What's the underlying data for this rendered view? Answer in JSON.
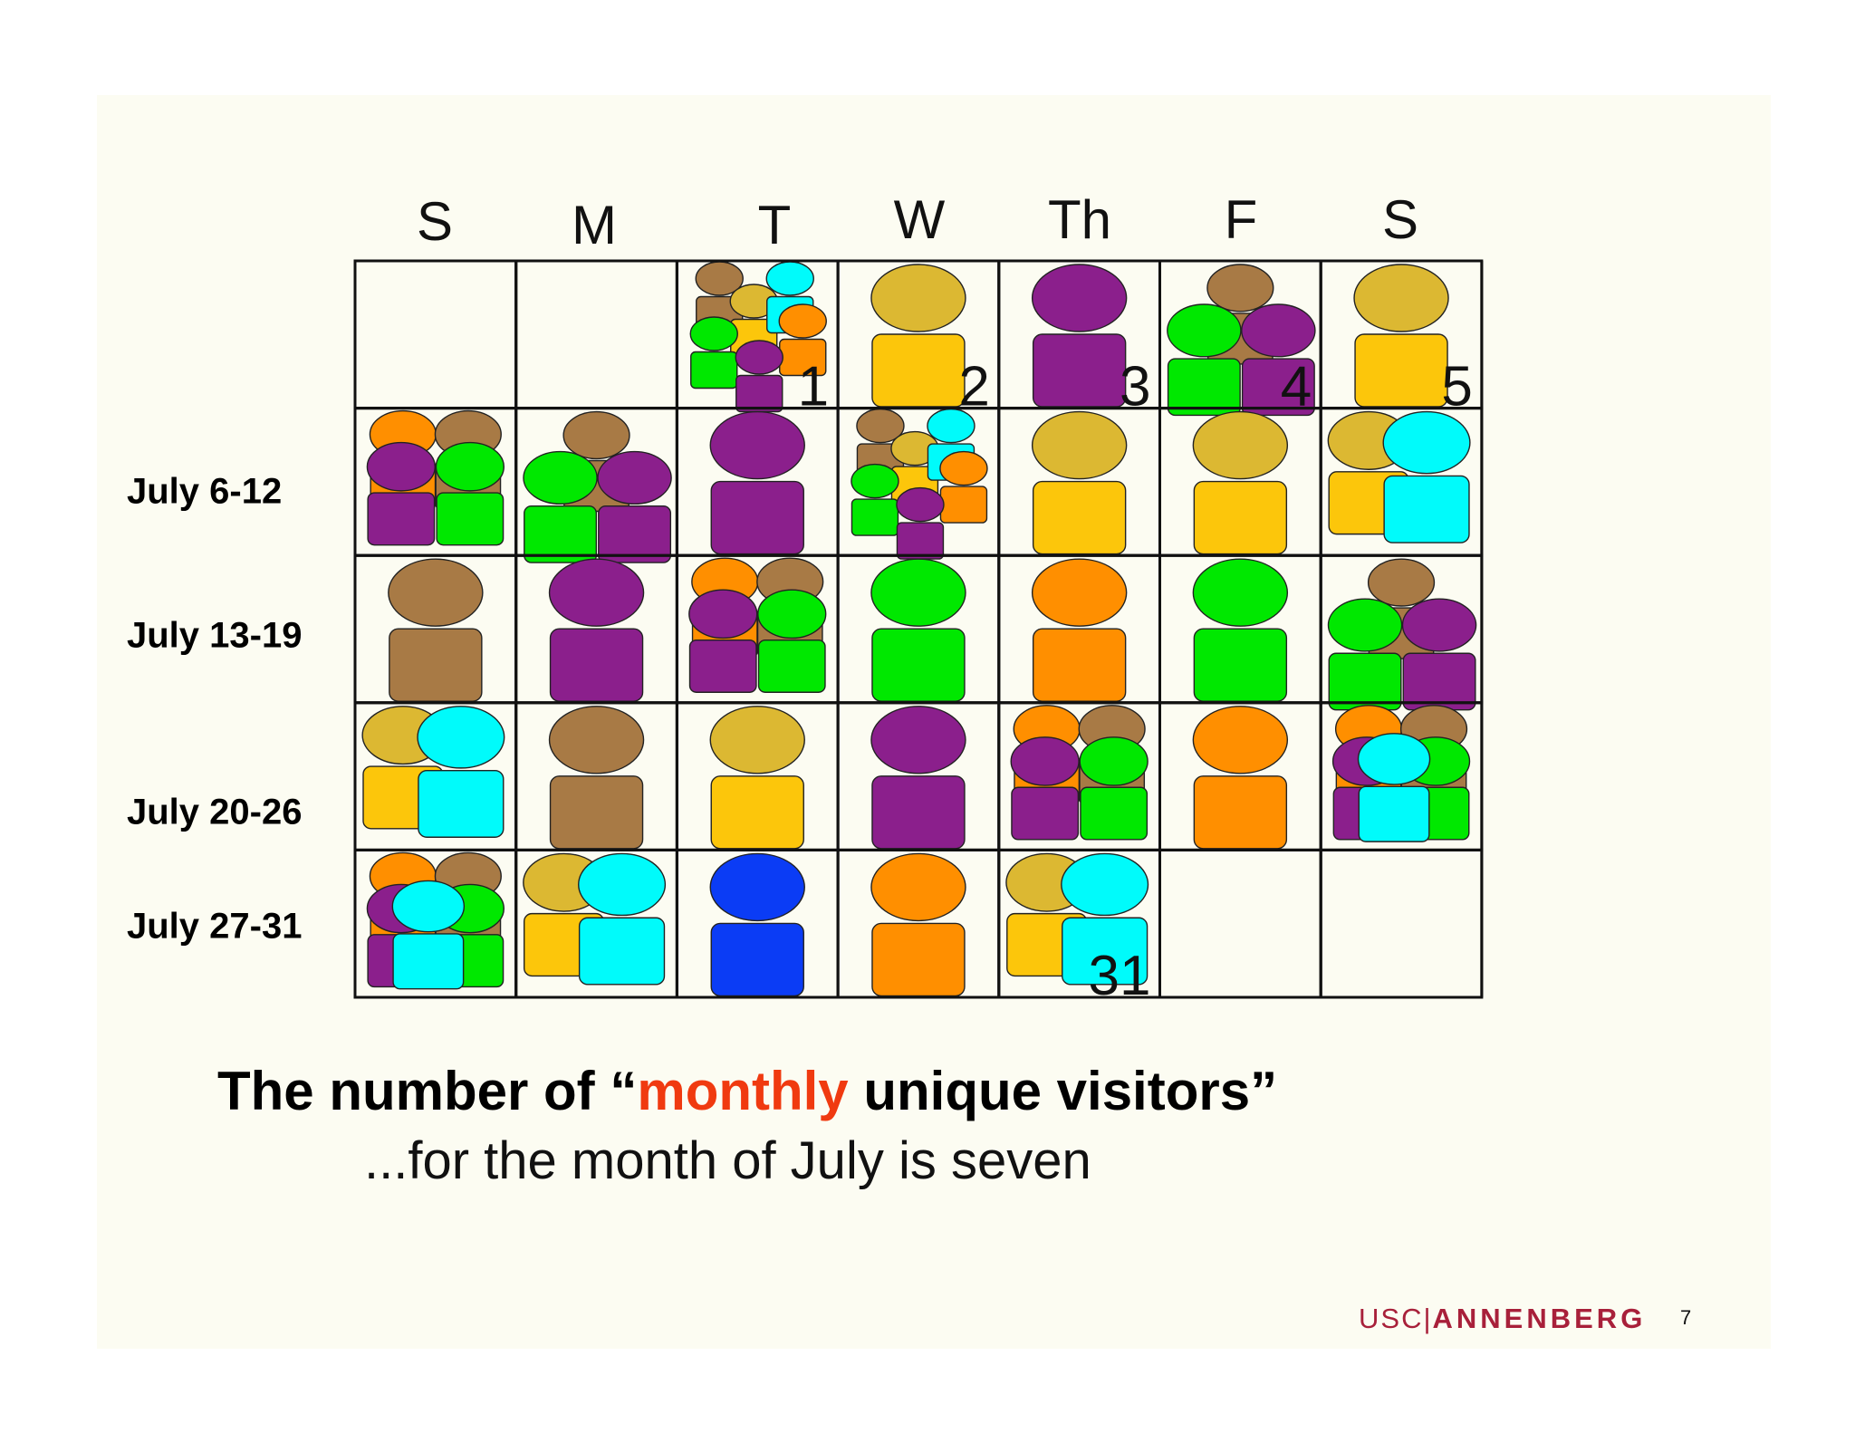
{
  "day_headers": [
    "S",
    "M",
    "T",
    "W",
    "Th",
    "F",
    "S"
  ],
  "row_labels": [
    "",
    "July 6-12",
    "July 13-19",
    "July 20-26",
    "July 27-31"
  ],
  "colors": {
    "brown": "#a87a45",
    "gold": "#dcb832",
    "goldbody": "#fcc60b",
    "purple": "#8b1f8c",
    "green": "#00e800",
    "cyan": "#00fbfb",
    "orange": "#ff8f00",
    "blue": "#0b3cf5",
    "grid": "#111111",
    "title_highlight": "#f03a10",
    "logo": "#a8203a",
    "slide_bg": "#fcfcf2"
  },
  "calendar": [
    [
      null,
      null,
      {
        "num": "1",
        "visitors": [
          "brown",
          "gold",
          "cyan",
          "green",
          "orange",
          "purple"
        ]
      },
      {
        "num": "2",
        "visitors": [
          "gold"
        ]
      },
      {
        "num": "3",
        "visitors": [
          "purple"
        ]
      },
      {
        "num": "4",
        "visitors": [
          "brown",
          "green",
          "purple"
        ]
      },
      {
        "num": "5",
        "visitors": [
          "gold"
        ]
      }
    ],
    [
      {
        "num": "",
        "visitors": [
          "orange",
          "brown",
          "purple",
          "green"
        ]
      },
      {
        "num": "",
        "visitors": [
          "brown",
          "green",
          "purple"
        ]
      },
      {
        "num": "",
        "visitors": [
          "purple"
        ]
      },
      {
        "num": "",
        "visitors": [
          "brown",
          "gold",
          "cyan",
          "green",
          "orange",
          "purple"
        ]
      },
      {
        "num": "",
        "visitors": [
          "gold"
        ]
      },
      {
        "num": "",
        "visitors": [
          "gold"
        ]
      },
      {
        "num": "",
        "visitors": [
          "gold",
          "cyan"
        ]
      }
    ],
    [
      {
        "num": "",
        "visitors": [
          "brown"
        ]
      },
      {
        "num": "",
        "visitors": [
          "purple"
        ]
      },
      {
        "num": "",
        "visitors": [
          "orange",
          "brown",
          "purple",
          "green"
        ]
      },
      {
        "num": "",
        "visitors": [
          "green"
        ]
      },
      {
        "num": "",
        "visitors": [
          "orange"
        ]
      },
      {
        "num": "",
        "visitors": [
          "green"
        ]
      },
      {
        "num": "",
        "visitors": [
          "brown",
          "green",
          "purple"
        ]
      }
    ],
    [
      {
        "num": "",
        "visitors": [
          "gold",
          "cyan"
        ]
      },
      {
        "num": "",
        "visitors": [
          "brown"
        ]
      },
      {
        "num": "",
        "visitors": [
          "gold"
        ]
      },
      {
        "num": "",
        "visitors": [
          "purple"
        ]
      },
      {
        "num": "",
        "visitors": [
          "orange",
          "brown",
          "purple",
          "green"
        ]
      },
      {
        "num": "",
        "visitors": [
          "orange"
        ]
      },
      {
        "num": "",
        "visitors": [
          "orange",
          "brown",
          "purple",
          "green",
          "cyan"
        ]
      }
    ],
    [
      {
        "num": "",
        "visitors": [
          "orange",
          "brown",
          "purple",
          "green",
          "cyan"
        ]
      },
      {
        "num": "",
        "visitors": [
          "gold",
          "cyan"
        ]
      },
      {
        "num": "",
        "visitors": [
          "blue"
        ]
      },
      {
        "num": "",
        "visitors": [
          "orange"
        ]
      },
      {
        "num": "31",
        "visitors": [
          "gold",
          "cyan"
        ]
      },
      null,
      null
    ]
  ],
  "title": {
    "prefix": "The number of “",
    "highlight": "monthly",
    "suffix": " unique visitors”"
  },
  "subtitle": "...for the month of July is seven",
  "logo": {
    "left": "USC",
    "sep": "|",
    "right": "ANNENBERG"
  },
  "page_number": "7"
}
